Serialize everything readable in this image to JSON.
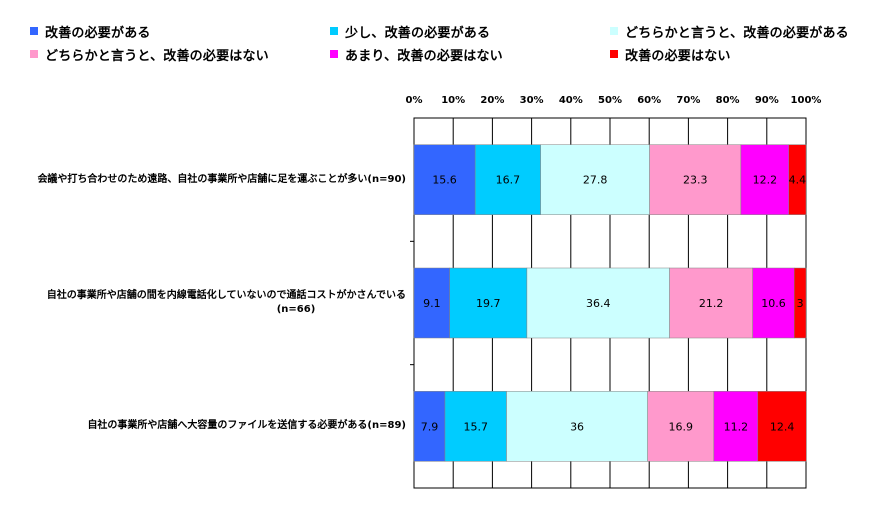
{
  "legend": [
    {
      "label": "改善の必要がある",
      "color": "#3366ff"
    },
    {
      "label": "少し、改善の必要がある",
      "color": "#00ccff"
    },
    {
      "label": "どちらかと言うと、改善の必要がある",
      "color": "#ccffff"
    },
    {
      "label": "どちらかと言うと、改善の必要はない",
      "color": "#ff99cc"
    },
    {
      "label": "あまり、改善の必要はない",
      "color": "#ff00ff"
    },
    {
      "label": "改善の必要はない",
      "color": "#ff0000"
    }
  ],
  "chart_data": {
    "type": "bar",
    "orientation": "horizontal",
    "stacked": true,
    "xlim": [
      0,
      100
    ],
    "x_tick_labels": [
      "0%",
      "10%",
      "20%",
      "30%",
      "40%",
      "50%",
      "60%",
      "70%",
      "80%",
      "90%",
      "100%"
    ],
    "grid": true,
    "legend_position": "top",
    "categories": [
      [
        "会議や打ち合わせのため遠路、自社の事業所や店舗に足を運ぶことが多い(n=90)"
      ],
      [
        "自社の事業所や店舗の間を内線電話化していないので通話コストがかさんでいる",
        "(n=66)"
      ],
      [
        "自社の事業所や店舗へ大容量のファイルを送信する必要がある(n=89)"
      ]
    ],
    "series": [
      {
        "name": "改善の必要がある",
        "color": "#3366ff",
        "values": [
          15.6,
          9.1,
          7.9
        ],
        "labels": [
          "15.6",
          "9.1",
          "7.9"
        ]
      },
      {
        "name": "少し、改善の必要がある",
        "color": "#00ccff",
        "values": [
          16.7,
          19.7,
          15.7
        ],
        "labels": [
          "16.7",
          "19.7",
          "15.7"
        ]
      },
      {
        "name": "どちらかと言うと、改善の必要がある",
        "color": "#ccffff",
        "values": [
          27.8,
          36.4,
          36
        ],
        "labels": [
          "27.8",
          "36.4",
          "36"
        ]
      },
      {
        "name": "どちらかと言うと、改善の必要はない",
        "color": "#ff99cc",
        "values": [
          23.3,
          21.2,
          16.9
        ],
        "labels": [
          "23.3",
          "21.2",
          "16.9"
        ]
      },
      {
        "name": "あまり、改善の必要はない",
        "color": "#ff00ff",
        "values": [
          12.2,
          10.6,
          11.2
        ],
        "labels": [
          "12.2",
          "10.6",
          "11.2"
        ]
      },
      {
        "name": "改善の必要はない",
        "color": "#ff0000",
        "values": [
          4.4,
          3,
          12.4
        ],
        "labels": [
          "4.4",
          "3",
          "12.4"
        ]
      }
    ]
  }
}
